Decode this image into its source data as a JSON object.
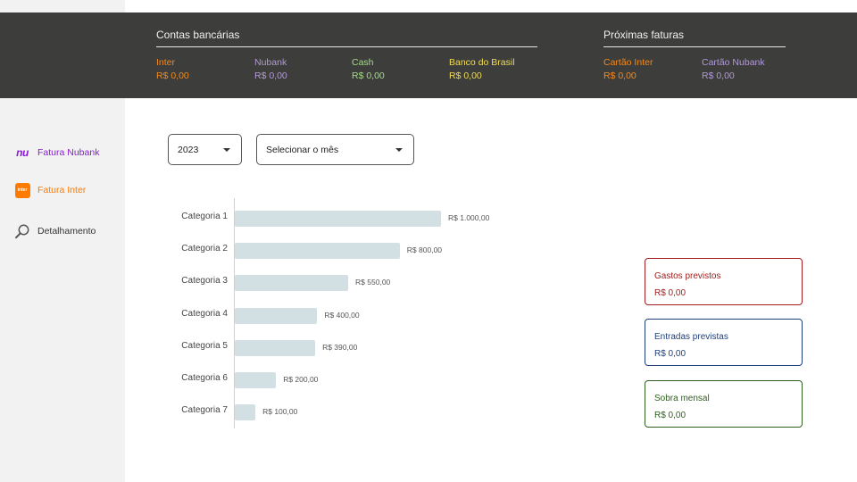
{
  "header": {
    "accounts_title": "Contas bancárias",
    "invoices_title": "Próximas faturas",
    "accounts": [
      {
        "name": "Inter",
        "value": "R$ 0,00",
        "color": "#f08a1f"
      },
      {
        "name": "Nubank",
        "value": "R$ 0,00",
        "color": "#b29bd6"
      },
      {
        "name": "Cash",
        "value": "R$ 0,00",
        "color": "#a6d98a"
      },
      {
        "name": "Banco do Brasil",
        "value": "R$ 0,00",
        "color": "#f2dc55"
      }
    ],
    "invoices": [
      {
        "name": "Cartão Inter",
        "value": "R$ 0,00",
        "color": "#f08a1f"
      },
      {
        "name": "Cartão Nubank",
        "value": "R$ 0,00",
        "color": "#b29bd6"
      }
    ]
  },
  "sidebar": {
    "items": [
      {
        "label": "Fatura Nubank",
        "icon": "nubank-logo-icon",
        "icon_text": "nu",
        "color": "#8a1ad6"
      },
      {
        "label": "Fatura Inter",
        "icon": "inter-logo-icon",
        "icon_text": "inter",
        "color": "#ff7a00"
      },
      {
        "label": "Detalhamento",
        "icon": "search-icon",
        "color": "#333333"
      }
    ]
  },
  "filters": {
    "year": "2023",
    "month_placeholder": "Selecionar o mês"
  },
  "chart_data": {
    "type": "bar",
    "orientation": "horizontal",
    "categories": [
      "Categoria 1",
      "Categoria 2",
      "Categoria 3",
      "Categoria 4",
      "Categoria 5",
      "Categoria 6",
      "Categoria 7"
    ],
    "values": [
      1000,
      800,
      550,
      400,
      390,
      200,
      100
    ],
    "value_labels": [
      "R$ 1.000,00",
      "R$ 800,00",
      "R$ 550,00",
      "R$ 400,00",
      "R$ 390,00",
      "R$ 200,00",
      "R$ 100,00"
    ],
    "bar_color": "#d3e0e3"
  },
  "cards": [
    {
      "title": "Gastos previstos",
      "value": "R$ 0,00",
      "color": "#a31d1d"
    },
    {
      "title": "Entradas previstas",
      "value": "R$ 0,00",
      "color": "#1f3f7a"
    },
    {
      "title": "Sobra mensal",
      "value": "R$ 0,00",
      "color": "#2f5d1e"
    }
  ]
}
